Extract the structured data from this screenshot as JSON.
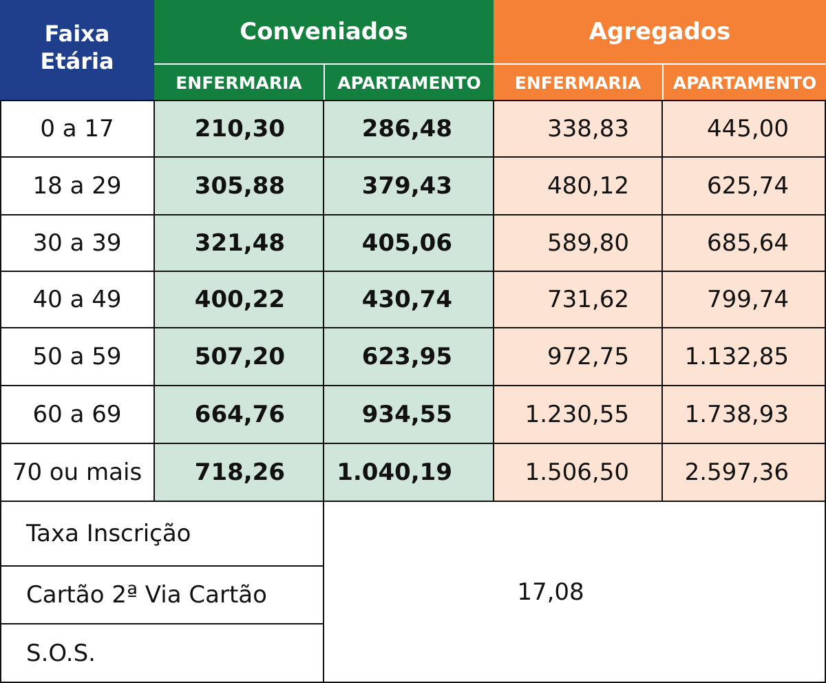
{
  "header": {
    "age_line1": "Faixa",
    "age_line2": "Etária",
    "group_conveniados": "Conveniados",
    "group_agregados": "Agregados",
    "enfermaria": "ENFERMARIA",
    "apartamento": "APARTAMENTO"
  },
  "rows": [
    {
      "age": "0 a 17",
      "conv_enf": "210,30",
      "conv_apt": "286,48",
      "agr_enf": "338,83",
      "agr_apt": "445,00"
    },
    {
      "age": "18 a 29",
      "conv_enf": "305,88",
      "conv_apt": "379,43",
      "agr_enf": "480,12",
      "agr_apt": "625,74"
    },
    {
      "age": "30 a 39",
      "conv_enf": "321,48",
      "conv_apt": "405,06",
      "agr_enf": "589,80",
      "agr_apt": "685,64"
    },
    {
      "age": "40 a 49",
      "conv_enf": "400,22",
      "conv_apt": "430,74",
      "agr_enf": "731,62",
      "agr_apt": "799,74"
    },
    {
      "age": "50 a 59",
      "conv_enf": "507,20",
      "conv_apt": "623,95",
      "agr_enf": "972,75",
      "agr_apt": "1.132,85"
    },
    {
      "age": "60 a 69",
      "conv_enf": "664,76",
      "conv_apt": "934,55",
      "agr_enf": "1.230,55",
      "agr_apt": "1.738,93"
    },
    {
      "age": "70 ou mais",
      "conv_enf": "718,26",
      "conv_apt": "1.040,19",
      "agr_enf": "1.506,50",
      "agr_apt": "2.597,36"
    }
  ],
  "footer": {
    "items": [
      "Taxa Inscrição",
      "Cartão 2ª Via Cartão",
      "S.O.S."
    ],
    "value": "17,08"
  },
  "colors": {
    "age_header": "#1f3f8c",
    "conveniados": "#13803f",
    "agregados": "#f48135",
    "conveniados_light": "#d1e6da",
    "agregados_light": "#fde3d3"
  }
}
